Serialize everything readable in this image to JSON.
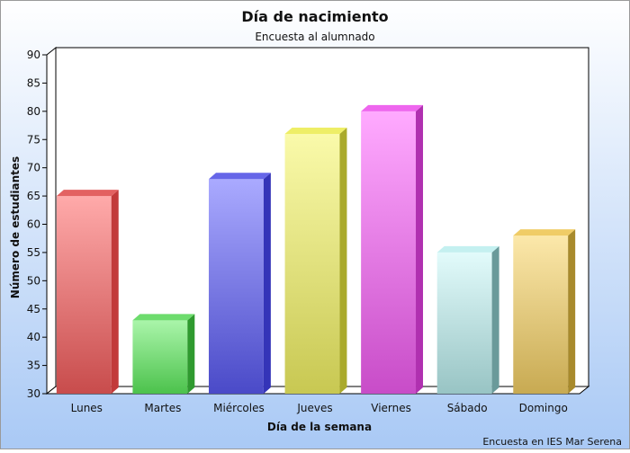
{
  "chart_data": {
    "type": "bar",
    "title": "Día de nacimiento",
    "subtitle": "Encuesta al alumnado",
    "xlabel": "Día de la semana",
    "ylabel": "Número de estudiantes",
    "footer": "Encuesta en IES Mar Serena",
    "ylim": [
      30,
      90
    ],
    "yticks": [
      30,
      35,
      40,
      45,
      50,
      55,
      60,
      65,
      70,
      75,
      80,
      85,
      90
    ],
    "grid": false,
    "legend": "none",
    "categories": [
      "Lunes",
      "Martes",
      "Miércoles",
      "Jueves",
      "Viernes",
      "Sábado",
      "Domingo"
    ],
    "values": [
      65,
      43,
      68,
      76,
      80,
      55,
      58
    ],
    "colors": [
      {
        "top": "#ffaaaa",
        "bottom": "#c84c4c",
        "side": "#c23a3a",
        "cap": "#e36161"
      },
      {
        "top": "#aaf5aa",
        "bottom": "#4cc24c",
        "side": "#2f9a2f",
        "cap": "#6ddc6d"
      },
      {
        "top": "#aaaaff",
        "bottom": "#4a4ac8",
        "side": "#3434b8",
        "cap": "#6666e8"
      },
      {
        "top": "#fafaaa",
        "bottom": "#c8c852",
        "side": "#aaaa2c",
        "cap": "#eeee66"
      },
      {
        "top": "#ffaaff",
        "bottom": "#c84cc8",
        "side": "#b030b0",
        "cap": "#ee66ee"
      },
      {
        "top": "#e2fbfb",
        "bottom": "#98c4c4",
        "side": "#6a9a9a",
        "cap": "#c4f0f0"
      },
      {
        "top": "#fce8aa",
        "bottom": "#c8aa52",
        "side": "#a88a2c",
        "cap": "#f0cc66"
      }
    ]
  }
}
